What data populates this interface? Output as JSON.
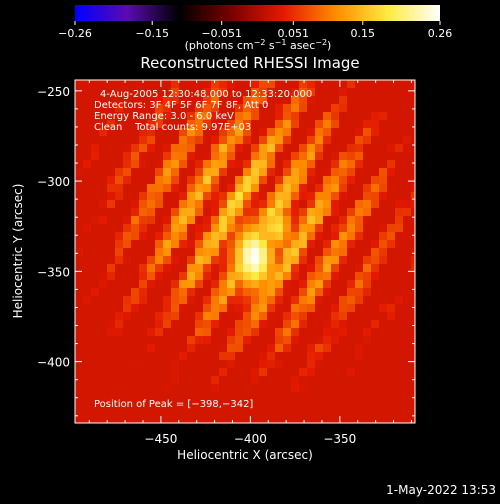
{
  "chart_data": {
    "type": "heatmap",
    "title": "Reconstructed RHESSI Image",
    "xlabel": "Heliocentric X (arcsec)",
    "ylabel": "Heliocentric Y (arcsec)",
    "xlim": [
      -498,
      -308
    ],
    "ylim": [
      -434,
      -244
    ],
    "x_ticks": [
      -450,
      -400,
      -350
    ],
    "x_tick_labels": [
      "−450",
      "−400",
      "−350"
    ],
    "y_ticks": [
      -250,
      -300,
      -350,
      -400
    ],
    "y_tick_labels": [
      "−250",
      "−300",
      "−350",
      "−400"
    ],
    "colorbar": {
      "range": [
        -0.26,
        0.26
      ],
      "ticks": [
        -0.26,
        -0.15,
        -0.051,
        0.051,
        0.15,
        0.26
      ],
      "tick_labels": [
        "−0.26",
        "−0.15",
        "−0.051",
        "0.051",
        "0.15",
        "0.26"
      ],
      "label_main": "(photons cm",
      "label_exp1": "−2",
      "label_mid": " s",
      "label_exp2": "−1",
      "label_mid2": " asec",
      "label_exp3": "−2",
      "label_end": ")",
      "colormap": [
        "#0000ff",
        "#5a0bb0",
        "#000000",
        "#7a0000",
        "#e31a00",
        "#ff8c00",
        "#ffea40",
        "#ffffff"
      ]
    },
    "peak": {
      "x": -398,
      "y": -342
    },
    "annotations": {
      "time": "4-Aug-2005 12:30:48.000 to 12:33:20.000",
      "detectors": "Detectors: 3F 4F 5F 6F 7F 8F, Att 0",
      "energy": "Energy Range: 3.0 - 6.0 keV",
      "clean": "Clean    Total counts: 9.97E+03",
      "peak_text": "Position of Peak = [−398,−342]"
    },
    "grid": false
  },
  "footer": {
    "timestamp": "1-May-2022 13:53"
  }
}
